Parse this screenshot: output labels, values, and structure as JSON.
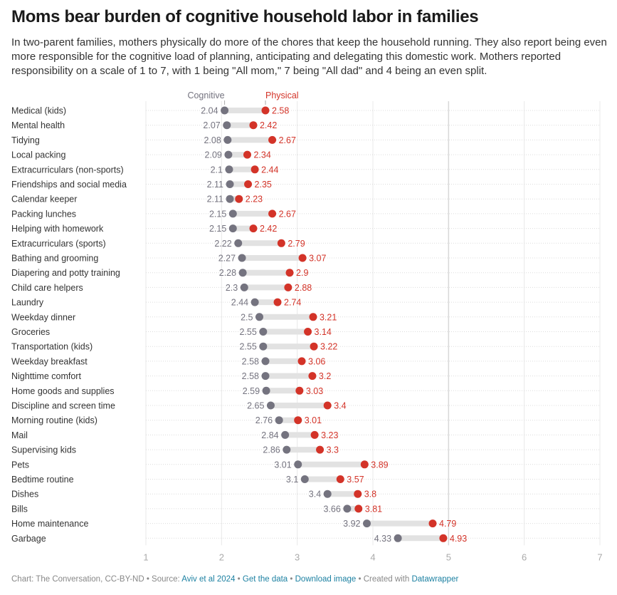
{
  "title": "Moms bear burden of cognitive household labor in families",
  "subtitle": "In two-parent families, mothers physically do more of the chores that keep the household running. They also report being even more responsible for the cognitive load of planning, anticipating and delegating this domestic work. Mothers reported responsibility on a scale of 1 to 7, with 1 being \"All mom,\" 7 being \"All dad\" and 4 being an even split.",
  "colors": {
    "cognitive": "#74737f",
    "physical": "#d33328",
    "connector": "#e2e2e2",
    "link": "#1d81a2"
  },
  "footer": {
    "prefix": "Chart: The Conversation, CC-BY-ND • Source: ",
    "source_link": "Aviv et al 2024",
    "sep1": " • ",
    "get_data": "Get the data",
    "sep2": " • ",
    "download": "Download image",
    "sep3": " • Created with ",
    "datawrapper": "Datawrapper"
  },
  "chart_data": {
    "type": "dot-range",
    "title": "Moms bear burden of cognitive household labor in families",
    "xlabel": "",
    "ylabel": "",
    "xlim": [
      1,
      7
    ],
    "xticks": [
      1,
      2,
      3,
      4,
      5,
      6,
      7
    ],
    "grid": true,
    "legend": {
      "placement": "top",
      "entries": [
        "Cognitive",
        "Physical"
      ]
    },
    "categories": [
      "Medical (kids)",
      "Mental health",
      "Tidying",
      "Local packing",
      "Extracurriculars (non-sports)",
      "Friendships and social media",
      "Calendar keeper",
      "Packing lunches",
      "Helping with homework",
      "Extracurriculars (sports)",
      "Bathing and grooming",
      "Diapering and potty training",
      "Child care helpers",
      "Laundry",
      "Weekday dinner",
      "Groceries",
      "Transportation (kids)",
      "Weekday breakfast",
      "Nighttime comfort",
      "Home goods and supplies",
      "Discipline and screen time",
      "Morning routine (kids)",
      "Mail",
      "Supervising kids",
      "Pets",
      "Bedtime routine",
      "Dishes",
      "Bills",
      "Home maintenance",
      "Garbage"
    ],
    "series": [
      {
        "name": "Cognitive",
        "values": [
          2.04,
          2.07,
          2.08,
          2.09,
          2.1,
          2.11,
          2.11,
          2.15,
          2.15,
          2.22,
          2.27,
          2.28,
          2.3,
          2.44,
          2.5,
          2.55,
          2.55,
          2.58,
          2.58,
          2.59,
          2.65,
          2.76,
          2.84,
          2.86,
          3.01,
          3.1,
          3.4,
          3.66,
          3.92,
          4.33
        ]
      },
      {
        "name": "Physical",
        "values": [
          2.58,
          2.42,
          2.67,
          2.34,
          2.44,
          2.35,
          2.23,
          2.67,
          2.42,
          2.79,
          3.07,
          2.9,
          2.88,
          2.74,
          3.21,
          3.14,
          3.22,
          3.06,
          3.2,
          3.03,
          3.4,
          3.01,
          3.23,
          3.3,
          3.89,
          3.57,
          3.8,
          3.81,
          4.79,
          4.93
        ]
      }
    ]
  }
}
